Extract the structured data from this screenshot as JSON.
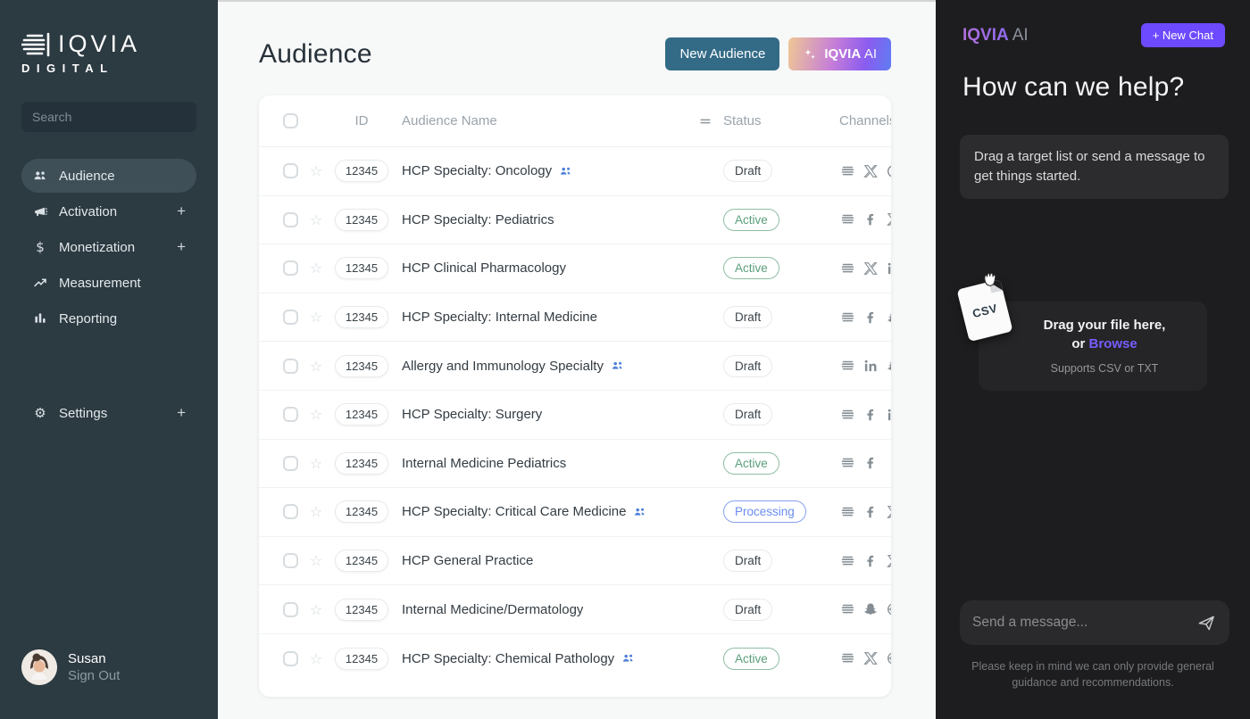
{
  "sidebar": {
    "logo": {
      "brand": "IQVIA",
      "sub": "DIGITAL"
    },
    "search_placeholder": "Search",
    "expand_glyph": "+",
    "nav": [
      {
        "label": "Audience",
        "icon": "audience-icon",
        "active": true,
        "expandable": false
      },
      {
        "label": "Activation",
        "icon": "activation-icon",
        "active": false,
        "expandable": true
      },
      {
        "label": "Monetization",
        "icon": "monetization-icon",
        "active": false,
        "expandable": true
      },
      {
        "label": "Measurement",
        "icon": "measurement-icon",
        "active": false,
        "expandable": false
      },
      {
        "label": "Reporting",
        "icon": "reporting-icon",
        "active": false,
        "expandable": false
      }
    ],
    "settings": {
      "label": "Settings",
      "icon": "settings-icon",
      "expandable": true
    },
    "user": {
      "name": "Susan",
      "action": "Sign Out"
    }
  },
  "main": {
    "title": "Audience",
    "buttons": {
      "new_audience": "New Audience",
      "iqvia_ai_brand": "IQVIA",
      "iqvia_ai_suffix": "AI"
    },
    "table": {
      "headers": {
        "id": "ID",
        "name": "Audience Name",
        "status": "Status",
        "channels": "Channels"
      },
      "rows": [
        {
          "id": "12345",
          "name": "HCP Specialty: Oncology",
          "people_icon": true,
          "status": "Draft",
          "channels": [
            "feed",
            "x",
            "clock"
          ]
        },
        {
          "id": "12345",
          "name": "HCP Specialty: Pediatrics",
          "people_icon": false,
          "status": "Active",
          "channels": [
            "feed",
            "facebook",
            "x"
          ]
        },
        {
          "id": "12345",
          "name": "HCP Clinical Pharmacology",
          "people_icon": false,
          "status": "Active",
          "channels": [
            "feed",
            "x",
            "linkedin"
          ]
        },
        {
          "id": "12345",
          "name": "HCP Specialty: Internal Medicine",
          "people_icon": false,
          "status": "Draft",
          "channels": [
            "feed",
            "facebook",
            "snapchat"
          ]
        },
        {
          "id": "12345",
          "name": "Allergy and Immunology Specialty",
          "people_icon": true,
          "status": "Draft",
          "channels": [
            "feed",
            "linkedin",
            "snapchat"
          ]
        },
        {
          "id": "12345",
          "name": "HCP Specialty: Surgery",
          "people_icon": false,
          "status": "Draft",
          "channels": [
            "feed",
            "facebook",
            "linkedin"
          ]
        },
        {
          "id": "12345",
          "name": "Internal Medicine Pediatrics",
          "people_icon": false,
          "status": "Active",
          "channels": [
            "feed",
            "facebook"
          ]
        },
        {
          "id": "12345",
          "name": "HCP Specialty: Critical Care Medicine",
          "people_icon": true,
          "status": "Processing",
          "channels": [
            "feed",
            "facebook",
            "x"
          ]
        },
        {
          "id": "12345",
          "name": "HCP General Practice",
          "people_icon": false,
          "status": "Draft",
          "channels": [
            "feed",
            "facebook",
            "x"
          ]
        },
        {
          "id": "12345",
          "name": "Internal Medicine/Dermatology",
          "people_icon": false,
          "status": "Draft",
          "channels": [
            "feed",
            "snapchat",
            "globe"
          ]
        },
        {
          "id": "12345",
          "name": "HCP Specialty: Chemical Pathology",
          "people_icon": true,
          "status": "Active",
          "channels": [
            "feed",
            "x",
            "globe"
          ]
        }
      ]
    }
  },
  "assistant": {
    "logo": {
      "brand": "IQVIA",
      "suffix": "AI"
    },
    "new_chat_label": "+ New Chat",
    "greeting": "How can we help?",
    "bubble": "Drag a target list or send a message to get things started.",
    "dropzone": {
      "file_label": "CSV",
      "line1": "Drag your file here,",
      "or": "or ",
      "browse": "Browse",
      "supports": "Supports CSV or TXT"
    },
    "input_placeholder": "Send a message...",
    "disclaimer": "Please keep in mind we can only provide general guidance and recommendations."
  },
  "colors": {
    "sidebar_bg": "#2c3a42",
    "sidebar_active": "#3e4f58",
    "teal_button": "#336b87",
    "purple_accent": "#6d4aff",
    "active_green": "#5a9e7c",
    "processing_blue": "#6b8df0",
    "panel_bg": "#1d1d1f",
    "ai_gradient": "linear-gradient(100deg,#efc795,#c47cd9,#8a5cf0,#5f7df2)"
  }
}
